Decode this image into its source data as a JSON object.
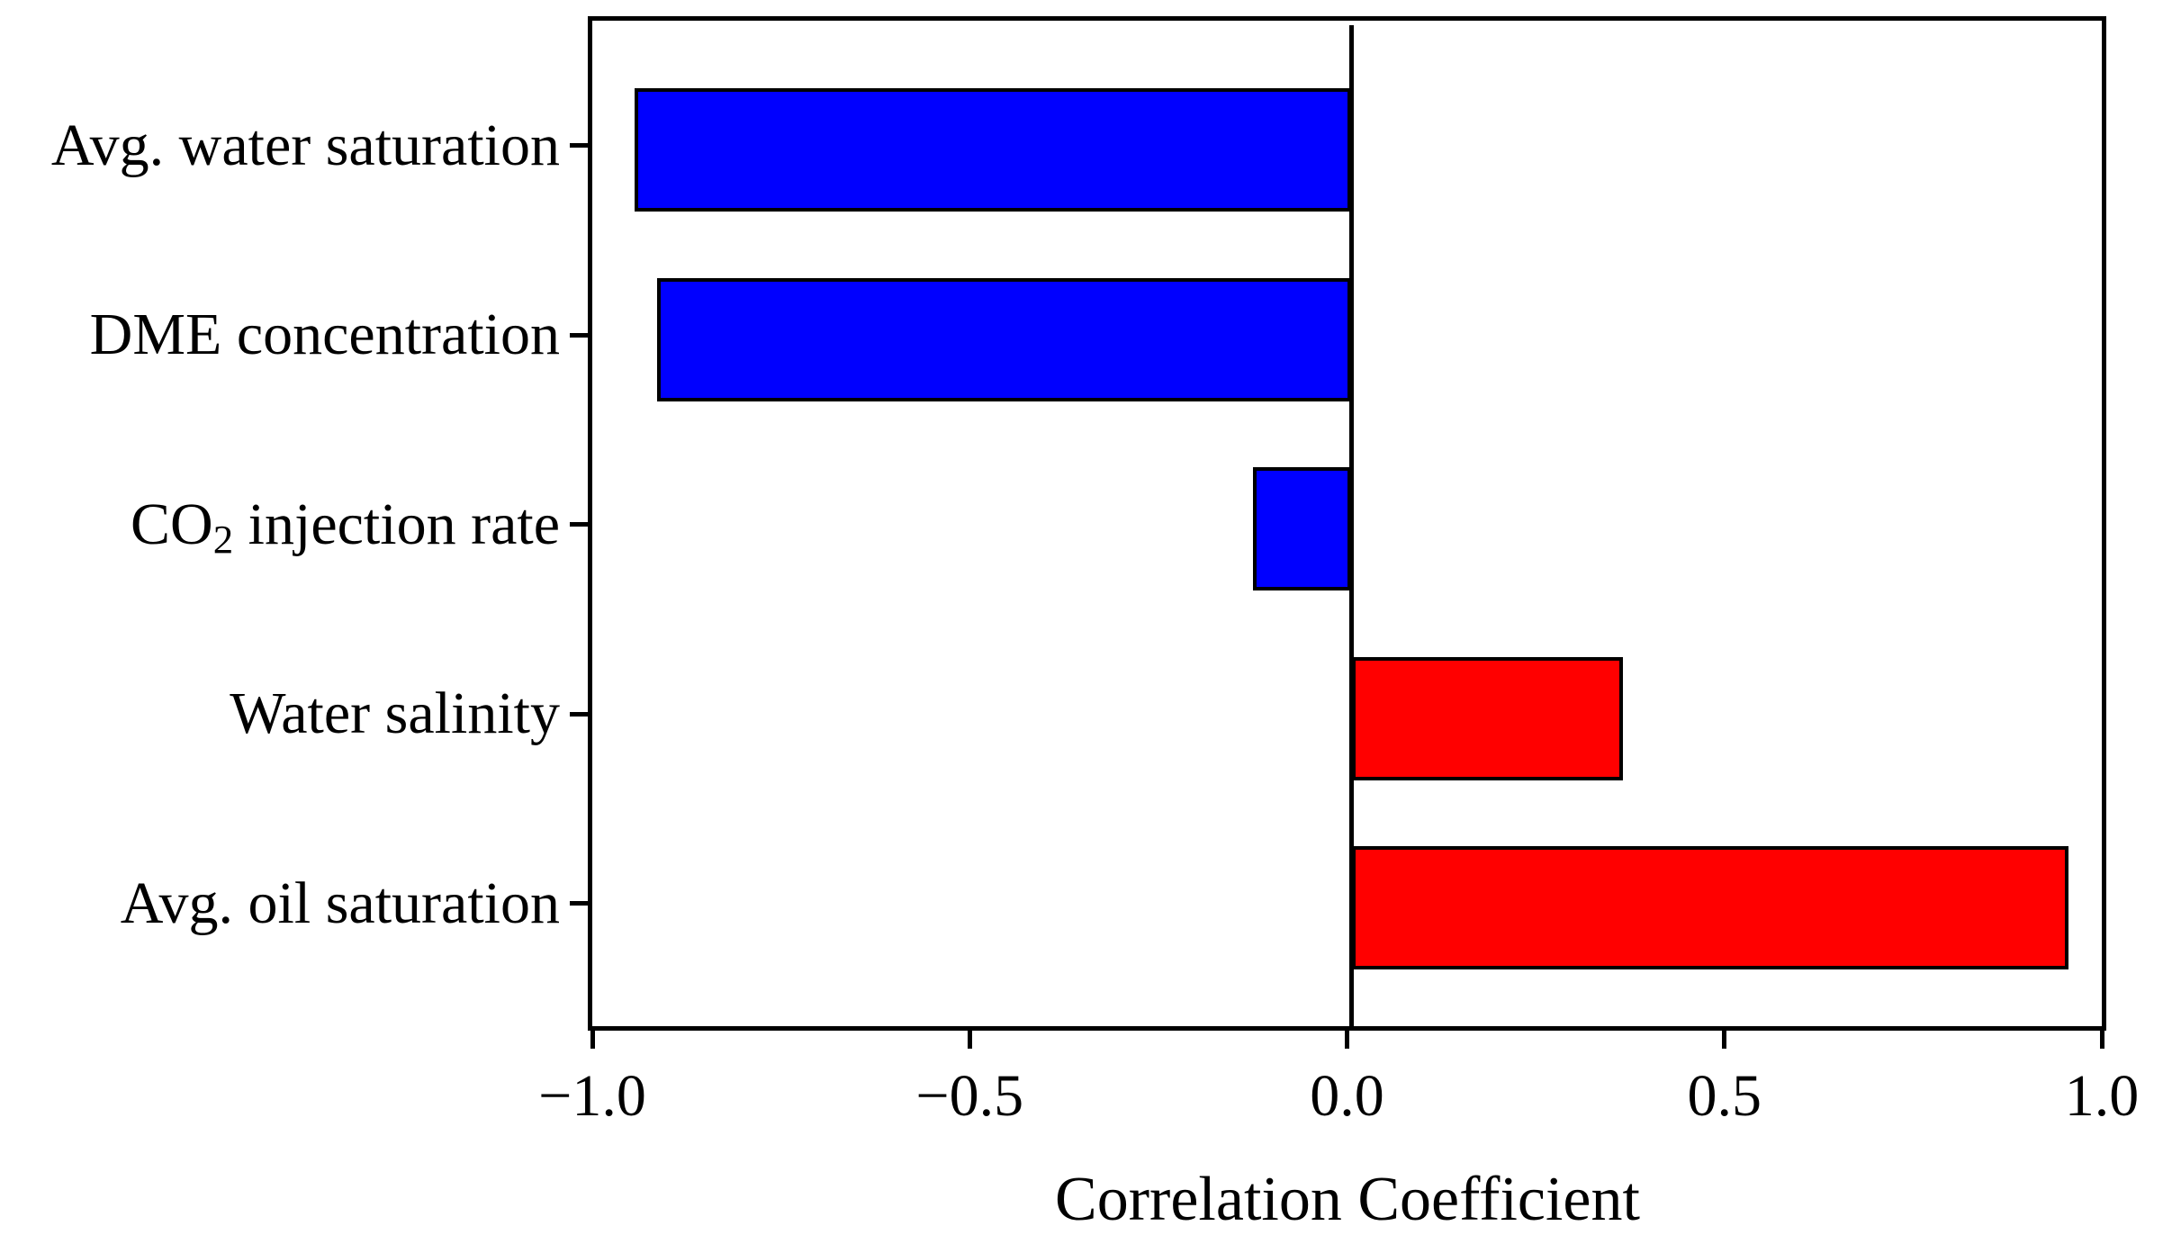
{
  "figure": {
    "background": "#ffffff",
    "frame_color": "#000000"
  },
  "chart_data": {
    "type": "bar",
    "orientation": "horizontal",
    "title": "",
    "xlabel": "Correlation Coefficient",
    "ylabel": "",
    "categories": [
      "Avg. water saturation",
      "DME concentration",
      "CO₂ injection rate",
      "Water salinity",
      "Avg. oil saturation"
    ],
    "values": [
      -0.95,
      -0.92,
      -0.13,
      0.36,
      0.95
    ],
    "bar_colors": [
      "#0000ff",
      "#0000ff",
      "#0000ff",
      "#ff0000",
      "#ff0000"
    ],
    "negative_color": "#0000ff",
    "positive_color": "#ff0000",
    "bar_edge_color": "#000000",
    "xlim": [
      -1.0,
      1.0
    ],
    "xticks": [
      -1.0,
      -0.5,
      0.0,
      0.5,
      1.0
    ],
    "xtick_labels": [
      "−1.0",
      "−0.5",
      "0.0",
      "0.5",
      "1.0"
    ],
    "zero_line": true,
    "grid": false,
    "legend": null
  }
}
